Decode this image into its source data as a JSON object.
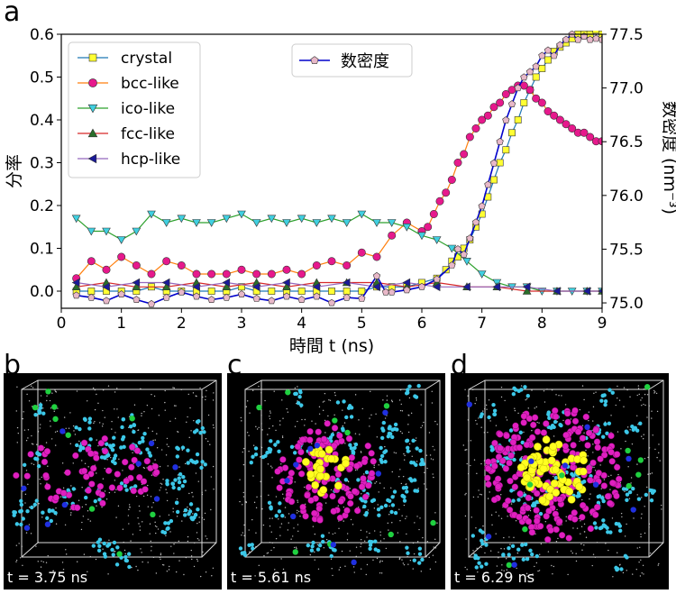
{
  "panel_labels": [
    "a",
    "b",
    "c",
    "d"
  ],
  "chart_data": {
    "type": "line",
    "xlabel": "時間 t (ns)",
    "ylabel_left": "分率",
    "ylabel_right": "数密度 (nm⁻³)",
    "xlim": [
      0,
      9
    ],
    "ylim_left": [
      -0.04,
      0.6
    ],
    "ylim_right": [
      74.95,
      77.5
    ],
    "x_ticks": [
      "0",
      "1",
      "2",
      "3",
      "4",
      "5",
      "6",
      "7",
      "8",
      "9"
    ],
    "y_left_ticks": [
      "0.0",
      "0.1",
      "0.2",
      "0.3",
      "0.4",
      "0.5",
      "0.6"
    ],
    "y_right_ticks": [
      "75.0",
      "75.5",
      "76.0",
      "76.5",
      "77.0",
      "77.5"
    ],
    "legend_main_position": "top-left",
    "legend_density_position": "top-center",
    "grid": false,
    "series": [
      {
        "name": "crystal",
        "axis": "left",
        "color": "#1f77b4",
        "marker": "square",
        "marker_color": "#ffff33",
        "x": [
          0.25,
          0.5,
          0.75,
          1.0,
          1.25,
          1.5,
          1.75,
          2.0,
          2.25,
          2.5,
          2.75,
          3.0,
          3.25,
          3.5,
          3.75,
          4.0,
          4.25,
          4.5,
          4.75,
          5.0,
          5.25,
          5.5,
          5.75,
          6.0,
          6.25,
          6.4,
          6.5,
          6.6,
          6.7,
          6.8,
          6.9,
          7.0,
          7.1,
          7.2,
          7.3,
          7.4,
          7.5,
          7.6,
          7.7,
          7.8,
          7.9,
          8.0,
          8.1,
          8.2,
          8.3,
          8.4,
          8.5,
          8.6,
          8.7,
          8.8,
          8.9,
          9.0
        ],
        "y": [
          0.0,
          0.0,
          0.0,
          0.0,
          0.0,
          0.01,
          0.0,
          0.0,
          0.0,
          0.0,
          0.0,
          0.01,
          0.0,
          0.0,
          0.0,
          0.0,
          0.0,
          0.0,
          0.0,
          0.0,
          0.01,
          0.01,
          0.01,
          0.02,
          0.03,
          0.05,
          0.07,
          0.08,
          0.1,
          0.12,
          0.15,
          0.18,
          0.22,
          0.26,
          0.3,
          0.33,
          0.37,
          0.4,
          0.44,
          0.47,
          0.5,
          0.52,
          0.54,
          0.56,
          0.57,
          0.58,
          0.59,
          0.6,
          0.6,
          0.6,
          0.61,
          0.6
        ]
      },
      {
        "name": "bcc-like",
        "axis": "left",
        "color": "#ff7f0e",
        "marker": "circle",
        "marker_color": "#e6198c",
        "x": [
          0.25,
          0.5,
          0.75,
          1.0,
          1.25,
          1.5,
          1.75,
          2.0,
          2.25,
          2.5,
          2.75,
          3.0,
          3.25,
          3.5,
          3.75,
          4.0,
          4.25,
          4.5,
          4.75,
          5.0,
          5.25,
          5.5,
          5.75,
          6.0,
          6.1,
          6.2,
          6.3,
          6.4,
          6.5,
          6.6,
          6.7,
          6.8,
          6.9,
          7.0,
          7.1,
          7.2,
          7.3,
          7.4,
          7.5,
          7.6,
          7.7,
          7.8,
          7.9,
          8.0,
          8.1,
          8.2,
          8.3,
          8.4,
          8.5,
          8.6,
          8.7,
          8.8,
          8.9,
          9.0
        ],
        "y": [
          0.03,
          0.07,
          0.05,
          0.08,
          0.06,
          0.04,
          0.07,
          0.06,
          0.04,
          0.04,
          0.04,
          0.05,
          0.04,
          0.04,
          0.05,
          0.04,
          0.06,
          0.07,
          0.06,
          0.09,
          0.08,
          0.13,
          0.16,
          0.14,
          0.15,
          0.18,
          0.21,
          0.23,
          0.26,
          0.3,
          0.32,
          0.36,
          0.38,
          0.4,
          0.41,
          0.43,
          0.44,
          0.46,
          0.47,
          0.48,
          0.48,
          0.47,
          0.45,
          0.44,
          0.42,
          0.41,
          0.4,
          0.39,
          0.38,
          0.37,
          0.37,
          0.36,
          0.35,
          0.35
        ]
      },
      {
        "name": "ico-like",
        "axis": "left",
        "color": "#2ca02c",
        "marker": "triangle-down",
        "marker_color": "#40d0e0",
        "x": [
          0.25,
          0.5,
          0.75,
          1.0,
          1.25,
          1.5,
          1.75,
          2.0,
          2.25,
          2.5,
          2.75,
          3.0,
          3.25,
          3.5,
          3.75,
          4.0,
          4.25,
          4.5,
          4.75,
          5.0,
          5.25,
          5.5,
          5.75,
          6.0,
          6.25,
          6.5,
          6.75,
          7.0,
          7.25,
          7.5,
          7.75,
          8.0,
          8.25,
          8.5,
          8.75,
          9.0
        ],
        "y": [
          0.17,
          0.14,
          0.14,
          0.12,
          0.14,
          0.18,
          0.16,
          0.17,
          0.16,
          0.16,
          0.17,
          0.18,
          0.16,
          0.17,
          0.16,
          0.17,
          0.16,
          0.17,
          0.16,
          0.18,
          0.16,
          0.16,
          0.15,
          0.13,
          0.12,
          0.1,
          0.07,
          0.04,
          0.02,
          0.01,
          0.01,
          0.0,
          0.0,
          0.0,
          0.0,
          0.0
        ]
      },
      {
        "name": "fcc-like",
        "axis": "left",
        "color": "#d62728",
        "marker": "triangle-up",
        "marker_color": "#2a6e2a",
        "x": [
          0.25,
          0.75,
          1.25,
          1.75,
          2.25,
          2.75,
          3.25,
          3.75,
          4.25,
          4.75,
          5.25,
          5.75,
          6.25,
          6.75,
          7.25,
          7.75,
          8.25,
          8.75,
          9.0
        ],
        "y": [
          0.01,
          0.02,
          0.01,
          0.01,
          0.02,
          0.01,
          0.02,
          0.01,
          0.02,
          0.02,
          0.02,
          0.01,
          0.02,
          0.01,
          0.01,
          0.0,
          0.0,
          0.0,
          0.0
        ]
      },
      {
        "name": "hcp-like",
        "axis": "left",
        "color": "#9467bd",
        "marker": "triangle-left",
        "marker_color": "#1a1a99",
        "x": [
          0.25,
          0.75,
          1.25,
          1.75,
          2.25,
          2.75,
          3.25,
          3.75,
          4.25,
          4.75,
          5.25,
          5.75,
          6.25,
          6.75,
          7.25,
          7.75,
          8.25,
          8.75,
          9.0
        ],
        "y": [
          0.02,
          0.01,
          0.02,
          0.02,
          0.01,
          0.02,
          0.01,
          0.02,
          0.01,
          0.02,
          0.01,
          0.02,
          0.01,
          0.01,
          0.01,
          0.01,
          0.0,
          0.0,
          0.0
        ]
      },
      {
        "name": "数密度",
        "axis": "right",
        "color": "#0000cc",
        "marker": "pentagon",
        "marker_color": "#e8b8c8",
        "x": [
          0.25,
          0.5,
          0.75,
          1.0,
          1.25,
          1.5,
          1.75,
          2.0,
          2.25,
          2.5,
          2.75,
          3.0,
          3.25,
          3.5,
          3.75,
          4.0,
          4.25,
          4.5,
          4.75,
          5.0,
          5.25,
          5.4,
          5.5,
          5.75,
          6.0,
          6.25,
          6.5,
          6.6,
          6.7,
          6.8,
          6.9,
          7.0,
          7.1,
          7.2,
          7.3,
          7.4,
          7.5,
          7.6,
          7.7,
          7.8,
          7.9,
          8.0,
          8.1,
          8.2,
          8.3,
          8.4,
          8.5,
          8.6,
          8.7,
          8.8,
          8.9,
          9.0
        ],
        "y": [
          75.07,
          75.05,
          75.02,
          75.08,
          75.03,
          74.99,
          75.05,
          75.1,
          75.06,
          75.03,
          75.05,
          75.08,
          75.04,
          75.02,
          75.06,
          75.03,
          75.06,
          75.0,
          75.05,
          75.04,
          75.25,
          75.1,
          75.1,
          75.12,
          75.15,
          75.22,
          75.35,
          75.5,
          75.45,
          75.6,
          75.75,
          75.9,
          76.1,
          76.3,
          76.5,
          76.7,
          76.85,
          77.0,
          77.1,
          77.15,
          77.2,
          77.3,
          77.35,
          77.3,
          77.4,
          77.45,
          77.5,
          77.45,
          77.48,
          77.45,
          77.46,
          77.45
        ]
      }
    ]
  },
  "snapshots": [
    {
      "label": "b",
      "time": "t = 3.75 ns"
    },
    {
      "label": "c",
      "time": "t = 5.61 ns"
    },
    {
      "label": "d",
      "time": "t = 6.29 ns"
    }
  ]
}
